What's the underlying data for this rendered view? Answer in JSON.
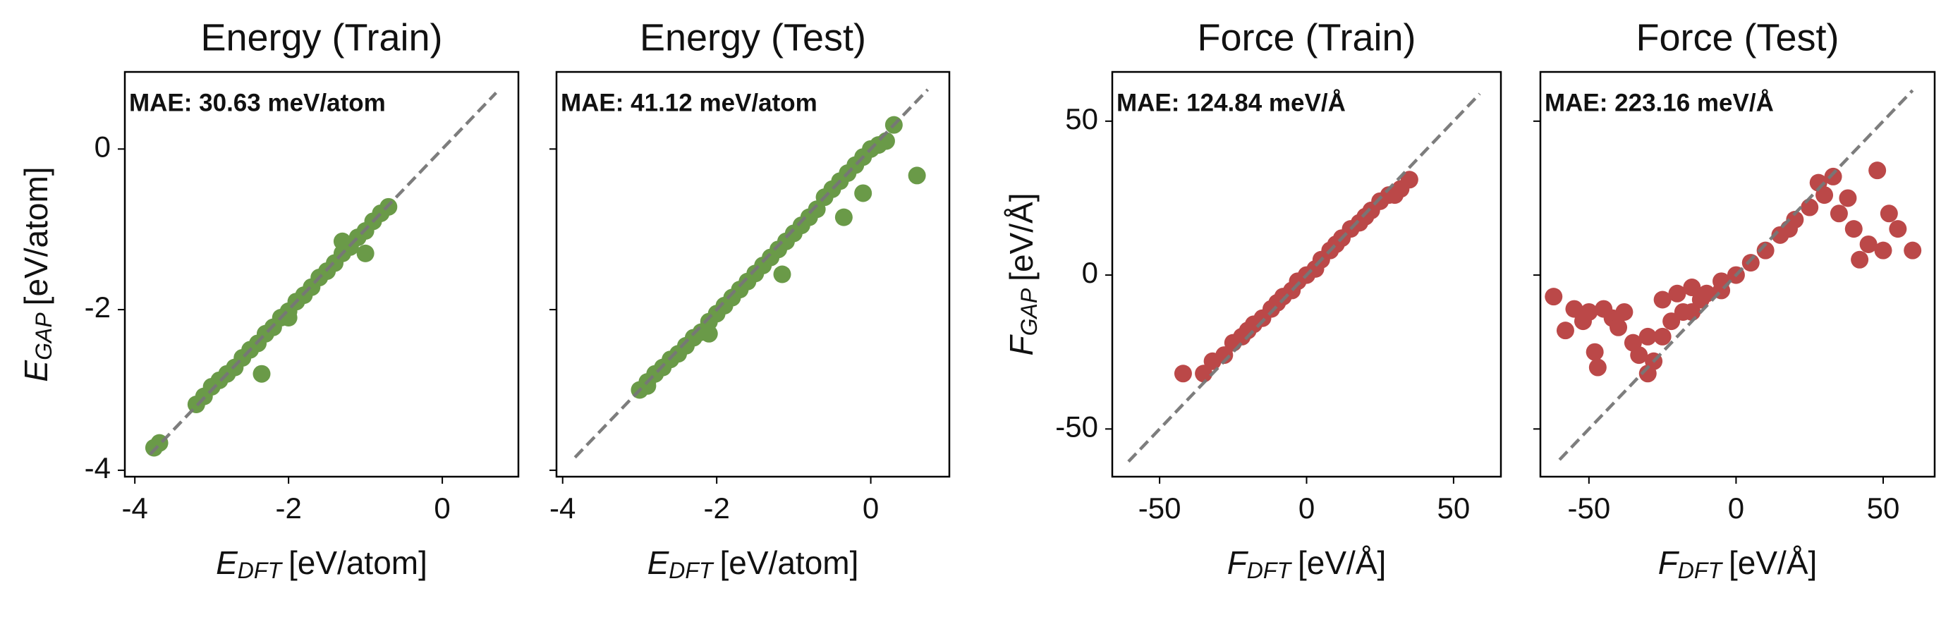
{
  "chart_data": [
    {
      "type": "scatter",
      "title": "Energy (Train)",
      "annotation": "MAE: 30.63 meV/atom",
      "color": "#6a9a48",
      "xlabel": {
        "symbol": "E",
        "subscript": "DFT",
        "unit": "[eV/atom]"
      },
      "ylabel": {
        "symbol": "E",
        "subscript": "GAP",
        "unit": "[eV/atom]"
      },
      "xlim": [
        -4.13,
        0.99
      ],
      "ylim": [
        -4.08,
        0.96
      ],
      "xticks": [
        -4,
        -2,
        0
      ],
      "yticks": [
        -4,
        -2,
        0
      ],
      "show_ytick_labels": true,
      "identity_line": [
        -3.8,
        0.7
      ],
      "x": [
        -3.75,
        -3.68,
        -3.2,
        -3.1,
        -3.0,
        -2.9,
        -2.8,
        -2.7,
        -2.6,
        -2.5,
        -2.4,
        -2.3,
        -2.2,
        -2.1,
        -2.0,
        -1.9,
        -1.8,
        -1.7,
        -1.6,
        -1.5,
        -1.4,
        -1.3,
        -1.2,
        -1.1,
        -1.0,
        -0.9,
        -0.8,
        -0.7,
        -2.35,
        -2.0,
        -1.3,
        -1.0
      ],
      "y": [
        -3.72,
        -3.66,
        -3.18,
        -3.08,
        -2.96,
        -2.88,
        -2.8,
        -2.72,
        -2.6,
        -2.5,
        -2.42,
        -2.3,
        -2.22,
        -2.1,
        -2.02,
        -1.9,
        -1.82,
        -1.72,
        -1.6,
        -1.52,
        -1.42,
        -1.3,
        -1.22,
        -1.1,
        -1.02,
        -0.9,
        -0.8,
        -0.72,
        -2.8,
        -2.1,
        -1.15,
        -1.3
      ]
    },
    {
      "type": "scatter",
      "title": "Energy (Test)",
      "annotation": "MAE: 41.12 meV/atom",
      "color": "#6a9a48",
      "xlabel": {
        "symbol": "E",
        "subscript": "DFT",
        "unit": "[eV/atom]"
      },
      "xlim": [
        -4.08,
        1.02
      ],
      "ylim": [
        -4.08,
        0.96
      ],
      "xticks": [
        -4,
        -2,
        0
      ],
      "yticks": [
        -4,
        -2,
        0
      ],
      "show_ytick_labels": false,
      "identity_line": [
        -3.84,
        0.74
      ],
      "x": [
        -3.0,
        -2.9,
        -2.8,
        -2.7,
        -2.6,
        -2.5,
        -2.4,
        -2.3,
        -2.2,
        -2.1,
        -2.0,
        -1.9,
        -1.8,
        -1.7,
        -1.6,
        -1.5,
        -1.4,
        -1.3,
        -1.2,
        -1.1,
        -1.0,
        -0.9,
        -0.8,
        -0.7,
        -0.6,
        -0.5,
        -0.4,
        -0.3,
        -0.2,
        -0.1,
        0.0,
        0.1,
        0.2,
        0.3,
        0.6,
        -1.15,
        -0.35,
        -0.1,
        -2.1,
        -2.9
      ],
      "y": [
        -3.0,
        -2.9,
        -2.8,
        -2.72,
        -2.62,
        -2.55,
        -2.45,
        -2.35,
        -2.28,
        -2.15,
        -2.05,
        -1.95,
        -1.85,
        -1.75,
        -1.65,
        -1.55,
        -1.45,
        -1.35,
        -1.25,
        -1.15,
        -1.05,
        -0.95,
        -0.85,
        -0.75,
        -0.6,
        -0.5,
        -0.4,
        -0.3,
        -0.2,
        -0.1,
        0.0,
        0.05,
        0.1,
        0.3,
        -0.33,
        -1.56,
        -0.85,
        -0.55,
        -2.3,
        -2.95
      ]
    },
    {
      "type": "scatter",
      "title": "Force (Train)",
      "annotation": "MAE: 124.84 meV/Å",
      "color": "#bb4848",
      "xlabel": {
        "symbol": "F",
        "subscript": "DFT",
        "unit": "[eV/Å]"
      },
      "ylabel": {
        "symbol": "F",
        "subscript": "GAP",
        "unit": "[eV/Å]"
      },
      "xlim": [
        -66.1,
        66.1
      ],
      "ylim": [
        -65.5,
        66
      ],
      "xticks": [
        -50,
        0,
        50
      ],
      "yticks": [
        -50,
        0,
        50
      ],
      "show_ytick_labels": true,
      "identity_line": [
        -60.6,
        58.9
      ],
      "x": [
        -42,
        -35,
        -32,
        -28,
        -25,
        -22,
        -20,
        -18,
        -15,
        -12,
        -10,
        -8,
        -5,
        -3,
        0,
        3,
        5,
        8,
        10,
        12,
        15,
        18,
        20,
        22,
        25,
        28,
        30,
        32,
        35
      ],
      "y": [
        -32,
        -32,
        -28,
        -26,
        -22,
        -20,
        -18,
        -16,
        -14,
        -11,
        -9,
        -7,
        -5,
        -2,
        0,
        2,
        5,
        8,
        10,
        12,
        15,
        17,
        19,
        21,
        24,
        26,
        26,
        28,
        31
      ]
    },
    {
      "type": "scatter",
      "title": "Force (Test)",
      "annotation": "MAE: 223.16 meV/Å",
      "color": "#bb4848",
      "xlabel": {
        "symbol": "F",
        "subscript": "DFT",
        "unit": "[eV/Å]"
      },
      "xlim": [
        -66.5,
        67.5
      ],
      "ylim": [
        -65.5,
        66
      ],
      "xticks": [
        -50,
        0,
        50
      ],
      "yticks": [
        -50,
        0,
        50
      ],
      "show_ytick_labels": false,
      "identity_line": [
        -60,
        60
      ],
      "x": [
        -62,
        -58,
        -55,
        -52,
        -50,
        -48,
        -47,
        -45,
        -42,
        -40,
        -38,
        -35,
        -33,
        -30,
        -28,
        -25,
        -22,
        -20,
        -18,
        -15,
        -12,
        -10,
        -5,
        0,
        5,
        10,
        15,
        20,
        25,
        30,
        33,
        35,
        38,
        40,
        42,
        45,
        48,
        50,
        52,
        55,
        60,
        28,
        18,
        -5,
        -15,
        -25,
        -30
      ],
      "y": [
        -7,
        -18,
        -11,
        -15,
        -12,
        -25,
        -30,
        -11,
        -14,
        -17,
        -12,
        -22,
        -26,
        -20,
        -28,
        -8,
        -15,
        -6,
        -12,
        -4,
        -8,
        -6,
        -2,
        0,
        4,
        8,
        13,
        18,
        22,
        26,
        32,
        20,
        25,
        15,
        5,
        10,
        34,
        8,
        20,
        15,
        8,
        30,
        15,
        -5,
        -12,
        -20,
        -32
      ]
    }
  ]
}
